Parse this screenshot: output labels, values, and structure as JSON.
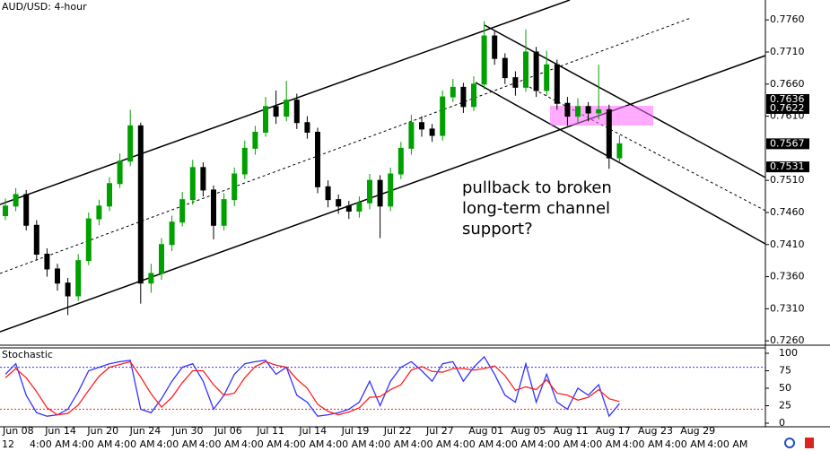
{
  "chart_data": [
    {
      "type": "candlestick",
      "title": "AUD/USD: 4-hour",
      "annotation": [
        "pullback to broken",
        "long-term channel",
        "support?"
      ],
      "open": [
        0.7455,
        0.747,
        0.7488,
        0.744,
        0.7395,
        0.7372,
        0.735,
        0.733,
        0.7385,
        0.745,
        0.747,
        0.7505,
        0.754,
        0.7595,
        0.735,
        0.7365,
        0.741,
        0.7445,
        0.748,
        0.753,
        0.7495,
        0.744,
        0.748,
        0.752,
        0.756,
        0.7585,
        0.7625,
        0.761,
        0.7635,
        0.76,
        0.7585,
        0.75,
        0.748,
        0.747,
        0.7462,
        0.7475,
        0.751,
        0.747,
        0.752,
        0.756,
        0.76,
        0.759,
        0.758,
        0.764,
        0.7655,
        0.7625,
        0.766,
        0.7735,
        0.77,
        0.767,
        0.7655,
        0.771,
        0.765,
        0.769,
        0.763,
        0.761,
        0.7625,
        0.7615,
        0.762,
        0.7545
      ],
      "high": [
        0.7482,
        0.7498,
        0.7495,
        0.7448,
        0.7404,
        0.738,
        0.7358,
        0.7395,
        0.746,
        0.748,
        0.7515,
        0.7552,
        0.762,
        0.76,
        0.738,
        0.742,
        0.7455,
        0.7492,
        0.7542,
        0.7538,
        0.7502,
        0.749,
        0.753,
        0.7572,
        0.7595,
        0.764,
        0.765,
        0.7665,
        0.7645,
        0.761,
        0.7592,
        0.751,
        0.7488,
        0.7478,
        0.7485,
        0.752,
        0.7518,
        0.753,
        0.757,
        0.7612,
        0.761,
        0.7598,
        0.765,
        0.7668,
        0.7662,
        0.7672,
        0.7758,
        0.7742,
        0.7708,
        0.768,
        0.7745,
        0.7718,
        0.7712,
        0.7698,
        0.764,
        0.7638,
        0.7632,
        0.769,
        0.7628,
        0.758
      ],
      "low": [
        0.7448,
        0.7462,
        0.7432,
        0.7385,
        0.736,
        0.7338,
        0.73,
        0.7322,
        0.7378,
        0.744,
        0.7462,
        0.7498,
        0.7532,
        0.7318,
        0.7335,
        0.7355,
        0.74,
        0.7438,
        0.7472,
        0.7485,
        0.7418,
        0.7432,
        0.747,
        0.7512,
        0.755,
        0.7578,
        0.7598,
        0.7602,
        0.759,
        0.7575,
        0.749,
        0.7468,
        0.7458,
        0.745,
        0.7452,
        0.7465,
        0.742,
        0.7462,
        0.7512,
        0.755,
        0.7578,
        0.757,
        0.7572,
        0.7632,
        0.7615,
        0.7618,
        0.7652,
        0.769,
        0.766,
        0.7642,
        0.7648,
        0.764,
        0.7642,
        0.762,
        0.7595,
        0.76,
        0.7602,
        0.7605,
        0.7528,
        0.7538
      ],
      "close": [
        0.747,
        0.7488,
        0.744,
        0.7395,
        0.7372,
        0.735,
        0.733,
        0.7385,
        0.745,
        0.747,
        0.7505,
        0.754,
        0.7595,
        0.735,
        0.7365,
        0.741,
        0.7445,
        0.748,
        0.753,
        0.7495,
        0.744,
        0.748,
        0.752,
        0.756,
        0.7585,
        0.7625,
        0.761,
        0.7635,
        0.76,
        0.7585,
        0.75,
        0.748,
        0.747,
        0.7462,
        0.7475,
        0.751,
        0.747,
        0.752,
        0.756,
        0.76,
        0.759,
        0.758,
        0.764,
        0.7655,
        0.7625,
        0.766,
        0.7735,
        0.77,
        0.767,
        0.7655,
        0.771,
        0.765,
        0.769,
        0.763,
        0.761,
        0.7625,
        0.7615,
        0.762,
        0.7545,
        0.7567
      ],
      "up_color": "#00a000",
      "down_color": "#000000",
      "ylim": [
        0.7256,
        0.7791
      ],
      "yticks": [
        {
          "value": 0.726,
          "label": "0.7260"
        },
        {
          "value": 0.731,
          "label": "0.7310"
        },
        {
          "value": 0.736,
          "label": "0.7360"
        },
        {
          "value": 0.741,
          "label": "0.7410"
        },
        {
          "value": 0.746,
          "label": "0.7460"
        },
        {
          "value": 0.751,
          "label": "0.7510"
        },
        {
          "value": 0.761,
          "label": "0.7610"
        },
        {
          "value": 0.766,
          "label": "0.7660"
        },
        {
          "value": 0.771,
          "label": "0.7710"
        },
        {
          "value": 0.776,
          "label": "0.7760"
        }
      ],
      "price_markers": [
        {
          "value": 0.7636,
          "label": "0.7636"
        },
        {
          "value": 0.7622,
          "label": "0.7622"
        },
        {
          "value": 0.7567,
          "label": "0.7567"
        },
        {
          "value": 0.7531,
          "label": "0.7531"
        }
      ],
      "date_labels": [
        "Jun 08",
        "Jun 14",
        "Jun 20",
        "Jun 24",
        "Jun 30",
        "Jul 06",
        "Jul 11",
        "Jul 14",
        "Jul 19",
        "Jul 22",
        "Jul 27",
        "Aug 01",
        "Aug 05",
        "Aug 11",
        "Aug 17",
        "Aug 23",
        "Aug 29"
      ],
      "time_labels": [
        "12",
        "4:00 AM",
        "4:00 AM",
        "4:00 AM",
        "4:00 AM",
        "4:00 AM",
        "4:00 AM",
        "4:00 AM",
        "4:00 AM",
        "4:00 AM",
        "4:00 AM",
        "4:00 AM",
        "4:00 AM",
        "4:00 AM",
        "4:00 AM",
        "4:00 AM",
        "4:00 AM",
        "4:00 AM"
      ]
    },
    {
      "type": "line",
      "title": "Stochastic",
      "series": [
        {
          "color": "#3333ff",
          "values": [
            70,
            85,
            40,
            15,
            10,
            12,
            20,
            45,
            75,
            80,
            85,
            88,
            90,
            20,
            15,
            35,
            60,
            80,
            85,
            60,
            20,
            40,
            70,
            85,
            88,
            90,
            70,
            80,
            40,
            30,
            10,
            12,
            15,
            20,
            30,
            60,
            25,
            60,
            80,
            88,
            75,
            60,
            85,
            88,
            60,
            80,
            95,
            70,
            40,
            30,
            85,
            30,
            70,
            30,
            20,
            50,
            40,
            55,
            10,
            28
          ]
        },
        {
          "color": "#ff2020",
          "values": [
            65,
            78,
            65,
            45,
            22,
            12,
            14,
            26,
            47,
            67,
            80,
            84,
            88,
            66,
            42,
            23,
            37,
            58,
            75,
            75,
            55,
            40,
            43,
            65,
            81,
            88,
            83,
            80,
            63,
            50,
            27,
            17,
            12,
            16,
            22,
            37,
            38,
            48,
            55,
            76,
            81,
            74,
            73,
            78,
            78,
            76,
            78,
            82,
            68,
            47,
            52,
            48,
            62,
            43,
            40,
            33,
            37,
            48,
            35,
            31
          ]
        }
      ],
      "levels": [
        {
          "value": 80,
          "color": "#3333ff"
        },
        {
          "value": 20,
          "color": "#ff2020"
        }
      ],
      "ylim": [
        0,
        100
      ],
      "yticks": [
        0,
        25,
        50,
        75,
        100
      ]
    }
  ]
}
